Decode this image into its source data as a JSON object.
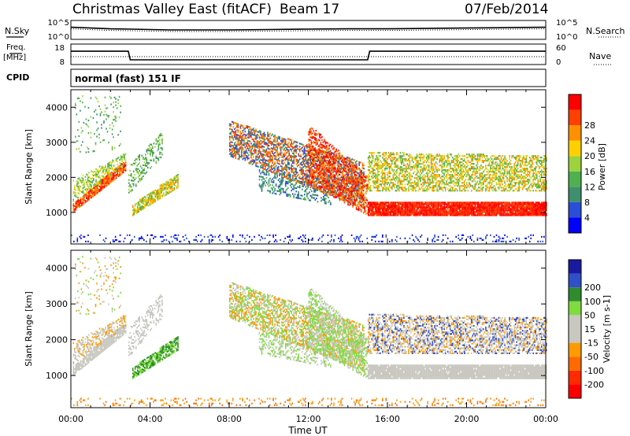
{
  "header": {
    "station": "Christmas Valley East (fitACF)",
    "beam": "Beam 17",
    "date": "07/Feb/2014"
  },
  "labels": {
    "nsky": "N.Sky",
    "nsearch": "N.Search",
    "freq": "Freq.",
    "freq_unit": "[MHz]",
    "nave": "Nave",
    "cpid": "CPID",
    "cpid_value": "normal (fast) 151 IF"
  },
  "noise_axis": {
    "left_ticks": [
      "10^5",
      "10^0"
    ],
    "right_ticks": [
      "10^5",
      "10^0"
    ]
  },
  "freq_axis": {
    "left_ticks": [
      "18",
      "8"
    ],
    "right_ticks": [
      "60",
      "0"
    ]
  },
  "colors": {
    "power_scale": [
      "#0000ff",
      "#2a4fd6",
      "#3f8f6e",
      "#4fb04f",
      "#9cd23c",
      "#ffd000",
      "#ff9000",
      "#ff4000",
      "#ff0000"
    ],
    "velocity_scale": [
      "#1a1aa0",
      "#3050c8",
      "#2e8b2e",
      "#7fdc3f",
      "#c8c8c0",
      "#c8c8c0",
      "#ff9a00",
      "#ff6a00",
      "#ff2a00",
      "#ff0000"
    ]
  },
  "chart_data": [
    {
      "type": "line",
      "panel": "noise",
      "x": [
        0,
        1,
        2,
        3,
        4,
        5,
        6,
        8,
        10,
        12,
        14,
        16,
        18,
        20,
        22,
        24
      ],
      "series": [
        {
          "values": [
            3.2,
            3.0,
            2.8,
            2.7,
            2.6,
            2.5,
            2.5,
            2.5,
            2.6,
            2.7,
            2.8,
            2.8,
            2.9,
            3.0,
            3.1,
            3.2
          ]
        }
      ],
      "xlim": [
        0,
        24
      ]
    },
    {
      "type": "line",
      "panel": "frequency",
      "x": [
        0,
        2.9,
        3.0,
        15.0,
        15.1,
        24
      ],
      "series": [
        {
          "values": [
            14.5,
            14.5,
            10.3,
            10.3,
            14.5,
            14.5
          ]
        }
      ],
      "ylim": [
        8,
        18
      ],
      "xlim": [
        0,
        24
      ]
    },
    {
      "type": "heatmap",
      "panel": "power",
      "xlabel": "",
      "ylabel": "Slant Range [km]",
      "xlim": [
        0,
        24
      ],
      "ylim": [
        100,
        4500
      ],
      "yticks": [
        1000,
        2000,
        3000,
        4000
      ],
      "colorbar": {
        "label": "Power [dB]",
        "ticks": [
          4,
          8,
          12,
          16,
          20,
          24,
          28
        ]
      }
    },
    {
      "type": "heatmap",
      "panel": "velocity",
      "xlabel": "Time UT",
      "ylabel": "Slant Range [km]",
      "xlim": [
        0,
        24
      ],
      "ylim": [
        100,
        4500
      ],
      "yticks": [
        1000,
        2000,
        3000,
        4000
      ],
      "xticks": [
        "00:00",
        "04:00",
        "08:00",
        "12:00",
        "16:00",
        "20:00",
        "00:00"
      ],
      "colorbar": {
        "label": "Velocity [m s-1]",
        "ticks": [
          200,
          100,
          50,
          15,
          -15,
          -50,
          -100,
          -200
        ]
      }
    }
  ]
}
